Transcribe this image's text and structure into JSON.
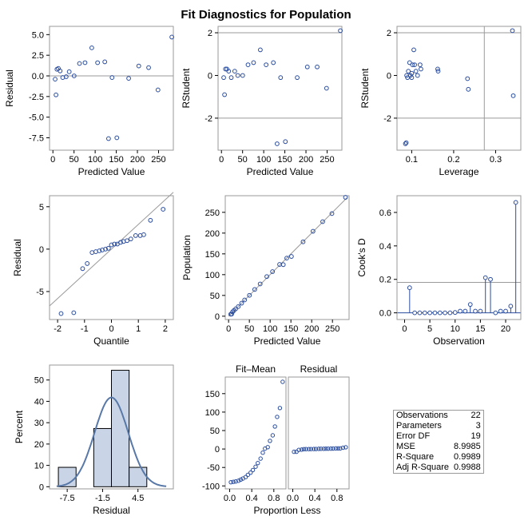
{
  "title": "Fit Diagnostics for Population",
  "colors": {
    "marker": "#2a4d9e",
    "line": "#9a9a9a",
    "fitline": "#5878a8",
    "bar": "#c9d5e6",
    "axis": "#000000"
  },
  "chart_data": [
    {
      "id": "residual-vs-predicted",
      "type": "scatter",
      "xlabel": "Predicted Value",
      "ylabel": "Residual",
      "xlim": [
        -8,
        285
      ],
      "ylim": [
        -9,
        6
      ],
      "xticks": [
        0,
        50,
        100,
        150,
        200,
        250
      ],
      "yticks": [
        -7.5,
        -5.0,
        -2.5,
        0.0,
        2.5,
        5.0
      ],
      "ytick_labels": [
        "-7.5",
        "-5.0",
        "-2.5",
        "0.0",
        "2.5",
        "5.0"
      ],
      "hlines": [
        0
      ],
      "points": [
        [
          5.3,
          -0.4
        ],
        [
          7.3,
          -2.3
        ],
        [
          9.6,
          0.8
        ],
        [
          12.9,
          0.9
        ],
        [
          17.1,
          0.6
        ],
        [
          23.2,
          -0.2
        ],
        [
          31.4,
          -0.1
        ],
        [
          38.6,
          0.5
        ],
        [
          50.2,
          0.0
        ],
        [
          62.9,
          1.5
        ],
        [
          76,
          1.6
        ],
        [
          92,
          3.4
        ],
        [
          105.7,
          1.6
        ],
        [
          122.8,
          1.7
        ],
        [
          131.7,
          -7.6
        ],
        [
          151.3,
          -7.5
        ],
        [
          179.3,
          -0.3
        ],
        [
          203.2,
          1.2
        ],
        [
          226.5,
          1.0
        ],
        [
          248.7,
          -1.7
        ],
        [
          281.4,
          4.7
        ],
        [
          140,
          -0.2
        ]
      ]
    },
    {
      "id": "rstudent-vs-predicted",
      "type": "scatter",
      "xlabel": "Predicted Value",
      "ylabel": "RStudent",
      "xlim": [
        -8,
        285
      ],
      "ylim": [
        -3.5,
        2.3
      ],
      "xticks": [
        0,
        50,
        100,
        150,
        200,
        250
      ],
      "yticks": [
        -2,
        0,
        2
      ],
      "hlines": [
        2,
        -2
      ],
      "points": [
        [
          5.3,
          -0.1
        ],
        [
          7.3,
          -0.9
        ],
        [
          9.6,
          0.3
        ],
        [
          12.9,
          0.3
        ],
        [
          17.1,
          0.2
        ],
        [
          23.2,
          -0.1
        ],
        [
          31.4,
          0.2
        ],
        [
          38.6,
          0.0
        ],
        [
          50.2,
          0.0
        ],
        [
          62.9,
          0.5
        ],
        [
          76,
          0.6
        ],
        [
          92,
          1.2
        ],
        [
          105.7,
          0.5
        ],
        [
          122.8,
          0.6
        ],
        [
          131.7,
          -3.2
        ],
        [
          151.3,
          -3.1
        ],
        [
          179.3,
          -0.1
        ],
        [
          203.2,
          0.4
        ],
        [
          226.5,
          0.4
        ],
        [
          248.7,
          -0.6
        ],
        [
          281.4,
          2.1
        ],
        [
          140,
          -0.1
        ]
      ]
    },
    {
      "id": "rstudent-vs-leverage",
      "type": "scatter",
      "xlabel": "Leverage",
      "ylabel": "RStudent",
      "xlim": [
        0.065,
        0.36
      ],
      "ylim": [
        -3.5,
        2.3
      ],
      "xticks": [
        0.1,
        0.2,
        0.3
      ],
      "yticks": [
        -2,
        0,
        2
      ],
      "hlines": [
        2,
        -2
      ],
      "vlines": [
        0.273
      ],
      "points": [
        [
          0.085,
          -3.2
        ],
        [
          0.087,
          -3.15
        ],
        [
          0.088,
          0.0
        ],
        [
          0.09,
          -0.1
        ],
        [
          0.092,
          0.2
        ],
        [
          0.095,
          0.6
        ],
        [
          0.097,
          0.0
        ],
        [
          0.1,
          -0.1
        ],
        [
          0.1,
          0.1
        ],
        [
          0.102,
          0.5
        ],
        [
          0.105,
          1.2
        ],
        [
          0.107,
          0.5
        ],
        [
          0.11,
          0.2
        ],
        [
          0.114,
          0.0
        ],
        [
          0.12,
          0.5
        ],
        [
          0.122,
          0.3
        ],
        [
          0.162,
          0.3
        ],
        [
          0.163,
          0.2
        ],
        [
          0.233,
          -0.15
        ],
        [
          0.235,
          -0.65
        ],
        [
          0.34,
          2.1
        ],
        [
          0.342,
          -0.95
        ]
      ]
    },
    {
      "id": "residual-qq",
      "type": "scatter",
      "xlabel": "Quantile",
      "ylabel": "Residual",
      "xlim": [
        -2.3,
        2.3
      ],
      "ylim": [
        -8.3,
        6.3
      ],
      "xticks": [
        -2,
        -1,
        0,
        1,
        2
      ],
      "yticks": [
        -5,
        0,
        5
      ],
      "refline": [
        [
          -2.3,
          -6.7
        ],
        [
          2.3,
          6.7
        ]
      ],
      "points": [
        [
          -1.87,
          -7.6
        ],
        [
          -1.4,
          -7.5
        ],
        [
          -1.07,
          -2.3
        ],
        [
          -0.9,
          -1.7
        ],
        [
          -0.72,
          -0.4
        ],
        [
          -0.58,
          -0.3
        ],
        [
          -0.45,
          -0.2
        ],
        [
          -0.34,
          -0.1
        ],
        [
          -0.22,
          0.0
        ],
        [
          -0.11,
          0.1
        ],
        [
          0.0,
          0.5
        ],
        [
          0.11,
          0.6
        ],
        [
          0.22,
          0.6
        ],
        [
          0.34,
          0.8
        ],
        [
          0.45,
          0.9
        ],
        [
          0.58,
          1.0
        ],
        [
          0.72,
          1.2
        ],
        [
          0.9,
          1.6
        ],
        [
          1.07,
          1.6
        ],
        [
          1.2,
          1.7
        ],
        [
          1.45,
          3.4
        ],
        [
          1.92,
          4.7
        ]
      ]
    },
    {
      "id": "population-vs-predicted",
      "type": "scatter",
      "xlabel": "Predicted Value",
      "ylabel": "Population",
      "xlim": [
        -8,
        290
      ],
      "ylim": [
        -8,
        290
      ],
      "xticks": [
        0,
        50,
        100,
        150,
        200,
        250
      ],
      "yticks": [
        0,
        50,
        100,
        150,
        200,
        250
      ],
      "refline": [
        [
          0,
          0
        ],
        [
          285,
          285
        ]
      ],
      "points": [
        [
          5.3,
          4.9
        ],
        [
          7.3,
          5.0
        ],
        [
          9.6,
          10.4
        ],
        [
          12.9,
          13.8
        ],
        [
          17.1,
          17.7
        ],
        [
          23.2,
          23.0
        ],
        [
          31.4,
          31.3
        ],
        [
          38.6,
          39.1
        ],
        [
          50.2,
          50.2
        ],
        [
          62.9,
          64.4
        ],
        [
          76,
          77.6
        ],
        [
          92,
          95.4
        ],
        [
          105.7,
          107.3
        ],
        [
          122.8,
          124.5
        ],
        [
          131.7,
          124.1
        ],
        [
          151.3,
          143.8
        ],
        [
          179.3,
          179.0
        ],
        [
          203.2,
          204.4
        ],
        [
          226.5,
          227.5
        ],
        [
          248.7,
          247.0
        ],
        [
          281.4,
          286.1
        ],
        [
          140,
          139.8
        ]
      ]
    },
    {
      "id": "cooks-d",
      "type": "needle",
      "xlabel": "Observation",
      "ylabel": "Cook's D",
      "xlim": [
        -1.5,
        23
      ],
      "ylim": [
        -0.04,
        0.7
      ],
      "xticks": [
        0,
        5,
        10,
        15,
        20
      ],
      "yticks": [
        0.0,
        0.2,
        0.4,
        0.6
      ],
      "ytick_labels": [
        "0.0",
        "0.2",
        "0.4",
        "0.6"
      ],
      "hlines": [
        0.182
      ],
      "x": [
        1,
        2,
        3,
        4,
        5,
        6,
        7,
        8,
        9,
        10,
        11,
        12,
        13,
        14,
        15,
        16,
        17,
        18,
        19,
        20,
        21,
        22
      ],
      "values": [
        0.15,
        0.0,
        0.0,
        0.0,
        0.0,
        0.0,
        0.0,
        0.0,
        0.0,
        0.002,
        0.01,
        0.01,
        0.05,
        0.01,
        0.01,
        0.21,
        0.2,
        0.0,
        0.01,
        0.01,
        0.04,
        0.66
      ]
    },
    {
      "id": "residual-histogram",
      "type": "bar",
      "xlabel": "Residual",
      "ylabel": "Percent",
      "xlim": [
        -10.5,
        10.5
      ],
      "ylim": [
        -1,
        57
      ],
      "xticks": [
        -7.5,
        -1.5,
        4.5
      ],
      "xtick_labels": [
        "-7.5",
        "-1.5",
        "4.5"
      ],
      "yticks": [
        0,
        10,
        20,
        30,
        40,
        50
      ],
      "bins": [
        [
          -9,
          -6,
          9.09
        ],
        [
          -6,
          -3,
          0
        ],
        [
          -3,
          0,
          27.27
        ],
        [
          0,
          3,
          54.55
        ],
        [
          3,
          6,
          9.09
        ]
      ],
      "curve": {
        "mean": 0,
        "sd": 2.86
      }
    },
    {
      "id": "residual-fit-spread",
      "type": "scatter",
      "ylabel": "",
      "panels": [
        {
          "label": "Fit–Mean",
          "xticks": [
            0.0,
            0.4,
            0.8
          ],
          "xtick_labels": [
            "0.0",
            "0.4",
            "0.8"
          ],
          "points": [
            [
              0.022,
              -90
            ],
            [
              0.067,
              -89
            ],
            [
              0.11,
              -88
            ],
            [
              0.16,
              -86
            ],
            [
              0.2,
              -83
            ],
            [
              0.24,
              -80
            ],
            [
              0.29,
              -76
            ],
            [
              0.33,
              -70
            ],
            [
              0.38,
              -64
            ],
            [
              0.42,
              -57
            ],
            [
              0.47,
              -48
            ],
            [
              0.51,
              -38
            ],
            [
              0.56,
              -26
            ],
            [
              0.6,
              -10
            ],
            [
              0.64,
              1
            ],
            [
              0.69,
              5
            ],
            [
              0.73,
              22
            ],
            [
              0.78,
              37
            ],
            [
              0.82,
              61
            ],
            [
              0.86,
              87
            ],
            [
              0.91,
              111
            ],
            [
              0.96,
              182
            ]
          ]
        },
        {
          "label": "Residual",
          "xticks": [
            0.0,
            0.4,
            0.8
          ],
          "xtick_labels": [
            "0.0",
            "0.4",
            "0.8"
          ],
          "points": [
            [
              0.022,
              -7.6
            ],
            [
              0.067,
              -7.5
            ],
            [
              0.11,
              -2.3
            ],
            [
              0.16,
              -1.7
            ],
            [
              0.2,
              -0.4
            ],
            [
              0.24,
              -0.3
            ],
            [
              0.29,
              -0.2
            ],
            [
              0.33,
              -0.1
            ],
            [
              0.38,
              0
            ],
            [
              0.42,
              0.1
            ],
            [
              0.47,
              0.5
            ],
            [
              0.51,
              0.6
            ],
            [
              0.56,
              0.6
            ],
            [
              0.6,
              0.8
            ],
            [
              0.64,
              0.9
            ],
            [
              0.69,
              1.0
            ],
            [
              0.73,
              1.2
            ],
            [
              0.78,
              1.6
            ],
            [
              0.82,
              1.6
            ],
            [
              0.86,
              1.7
            ],
            [
              0.91,
              3.4
            ],
            [
              0.96,
              4.7
            ]
          ]
        }
      ],
      "xlim": [
        -0.08,
        1.02
      ],
      "ylim": [
        -108,
        195
      ],
      "yticks": [
        -100,
        -50,
        0,
        50,
        100,
        150
      ],
      "xlabel": "Proportion Less"
    }
  ],
  "stats_table": [
    {
      "label": "Observations",
      "value": "22"
    },
    {
      "label": "Parameters",
      "value": "3"
    },
    {
      "label": "Error DF",
      "value": "19"
    },
    {
      "label": "MSE",
      "value": "8.9985"
    },
    {
      "label": "R-Square",
      "value": "0.9989"
    },
    {
      "label": "Adj R-Square",
      "value": "0.9988"
    }
  ]
}
